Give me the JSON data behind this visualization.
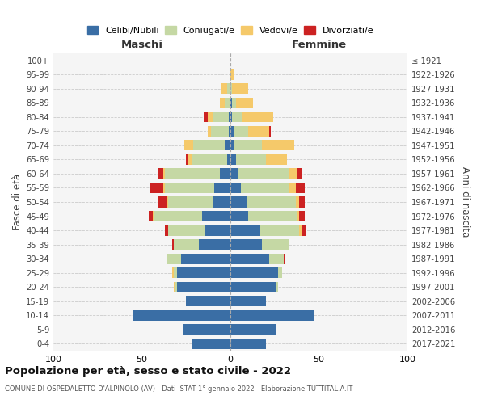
{
  "title": "Popolazione per età, sesso e stato civile - 2022",
  "subtitle": "COMUNE DI OSPEDALETTO D'ALPINOLO (AV) - Dati ISTAT 1° gennaio 2022 - Elaborazione TUTTITALIA.IT",
  "age_groups": [
    "0-4",
    "5-9",
    "10-14",
    "15-19",
    "20-24",
    "25-29",
    "30-34",
    "35-39",
    "40-44",
    "45-49",
    "50-54",
    "55-59",
    "60-64",
    "65-69",
    "70-74",
    "75-79",
    "80-84",
    "85-89",
    "90-94",
    "95-99",
    "100+"
  ],
  "birth_years": [
    "2017-2021",
    "2012-2016",
    "2007-2011",
    "2002-2006",
    "1997-2001",
    "1992-1996",
    "1987-1991",
    "1982-1986",
    "1977-1981",
    "1972-1976",
    "1967-1971",
    "1962-1966",
    "1957-1961",
    "1952-1956",
    "1947-1951",
    "1942-1946",
    "1937-1941",
    "1932-1936",
    "1927-1931",
    "1922-1926",
    "≤ 1921"
  ],
  "colors": {
    "celibi": "#3a6ea5",
    "coniugati": "#c5d8a4",
    "vedovi": "#f5c96a",
    "divorziati": "#cc2222"
  },
  "maschi": {
    "celibi": [
      22,
      27,
      55,
      25,
      30,
      30,
      28,
      18,
      14,
      16,
      10,
      9,
      6,
      2,
      3,
      1,
      1,
      0,
      0,
      0,
      0
    ],
    "coniugati": [
      0,
      0,
      0,
      0,
      1,
      2,
      8,
      14,
      21,
      27,
      25,
      28,
      31,
      20,
      18,
      10,
      9,
      3,
      2,
      0,
      0
    ],
    "vedovi": [
      0,
      0,
      0,
      0,
      1,
      1,
      0,
      0,
      0,
      1,
      1,
      1,
      1,
      2,
      5,
      2,
      3,
      3,
      3,
      0,
      0
    ],
    "divorziati": [
      0,
      0,
      0,
      0,
      0,
      0,
      0,
      1,
      2,
      2,
      5,
      7,
      3,
      1,
      0,
      0,
      2,
      0,
      0,
      0,
      0
    ]
  },
  "femmine": {
    "nubili": [
      20,
      26,
      47,
      20,
      26,
      27,
      22,
      18,
      17,
      10,
      9,
      6,
      4,
      3,
      2,
      2,
      1,
      1,
      0,
      0,
      0
    ],
    "coniugate": [
      0,
      0,
      0,
      0,
      1,
      2,
      8,
      15,
      22,
      28,
      28,
      27,
      29,
      17,
      16,
      8,
      6,
      2,
      1,
      0,
      0
    ],
    "vedove": [
      0,
      0,
      0,
      0,
      0,
      0,
      0,
      0,
      1,
      1,
      2,
      4,
      5,
      12,
      18,
      12,
      17,
      10,
      9,
      2,
      0
    ],
    "divorziate": [
      0,
      0,
      0,
      0,
      0,
      0,
      1,
      0,
      3,
      3,
      3,
      5,
      2,
      0,
      0,
      1,
      0,
      0,
      0,
      0,
      0
    ]
  },
  "xlim": 100,
  "ylabel": "Fasce di età",
  "ylabel2": "Anni di nascita",
  "xlabel_left": "Maschi",
  "xlabel_right": "Femmine",
  "bg_color": "#f5f5f5",
  "bar_height": 0.75
}
